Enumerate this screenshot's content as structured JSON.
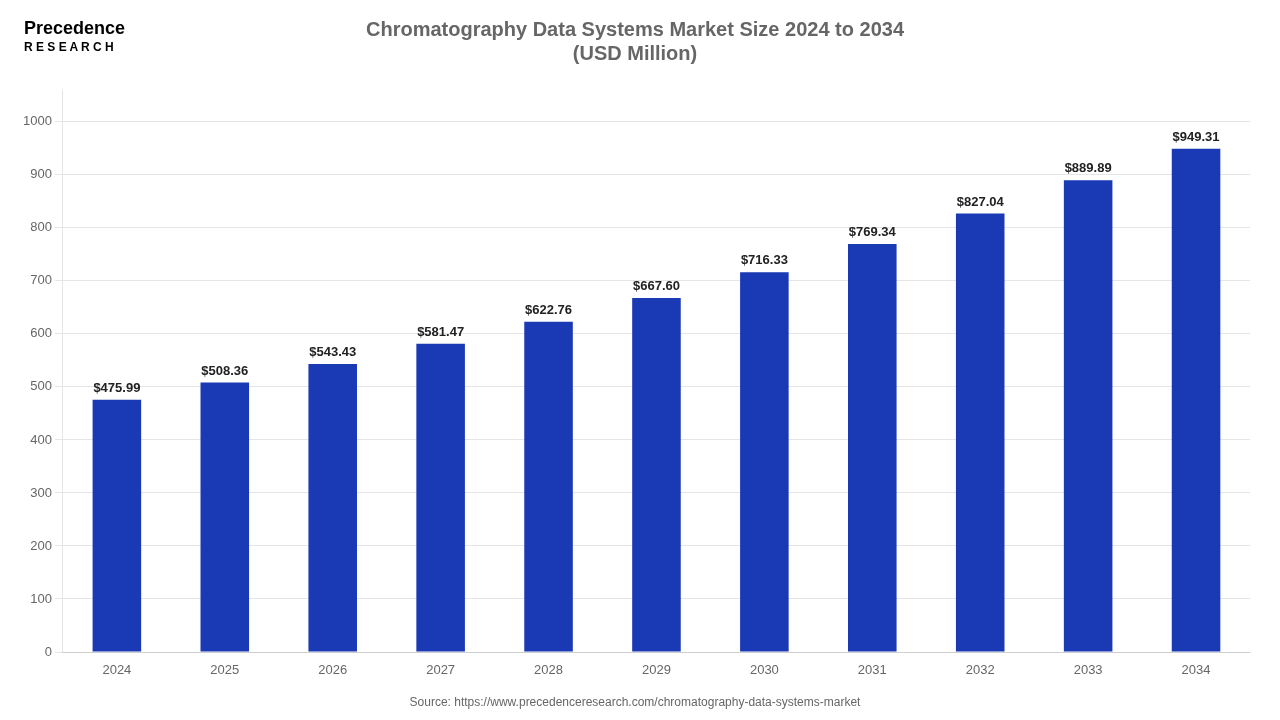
{
  "chart_data": {
    "type": "bar",
    "title": "Chromatography Data Systems Market Size 2024 to 2034\n(USD Million)",
    "categories": [
      "2024",
      "2025",
      "2026",
      "2027",
      "2028",
      "2029",
      "2030",
      "2031",
      "2032",
      "2033",
      "2034"
    ],
    "values": [
      475.99,
      508.36,
      543.43,
      581.47,
      622.76,
      667.6,
      716.33,
      769.34,
      827.04,
      889.89,
      949.31
    ],
    "value_labels": [
      "$475.99",
      "$508.36",
      "$543.43",
      "$581.47",
      "$622.76",
      "$667.60",
      "$716.33",
      "$769.34",
      "$827.04",
      "$889.89",
      "$949.31"
    ],
    "data_labels": true,
    "color": "#1a3ab5",
    "ylim": [
      0,
      1060
    ],
    "yticks": [
      0,
      100,
      200,
      300,
      400,
      500,
      600,
      700,
      800,
      900,
      1000
    ],
    "grid": true,
    "source": "Source: https://www.precedenceresearch.com/chromatography-data-systems-market",
    "annotations": [
      "Precedence",
      "R E S E A R C H"
    ]
  }
}
